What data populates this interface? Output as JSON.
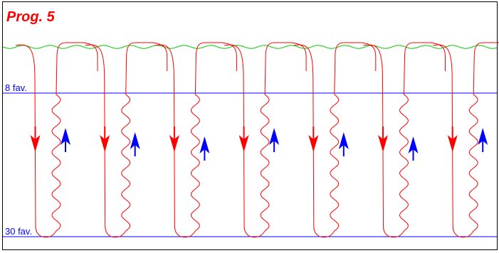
{
  "title": "Prog. 5",
  "levels": {
    "upper_label": "8 fav.",
    "lower_label": "30 fav."
  },
  "cycles": 7,
  "colors": {
    "title": "#ff0000",
    "descend_path": "#ff0000",
    "ascend_arrow": "#0000ff",
    "level_lines": "#0000ff",
    "surface_wave": "#00cc00",
    "frame": "#000000"
  },
  "icons": {
    "descend": "red-down-arrow-icon",
    "ascend": "blue-up-arrow-icon"
  }
}
